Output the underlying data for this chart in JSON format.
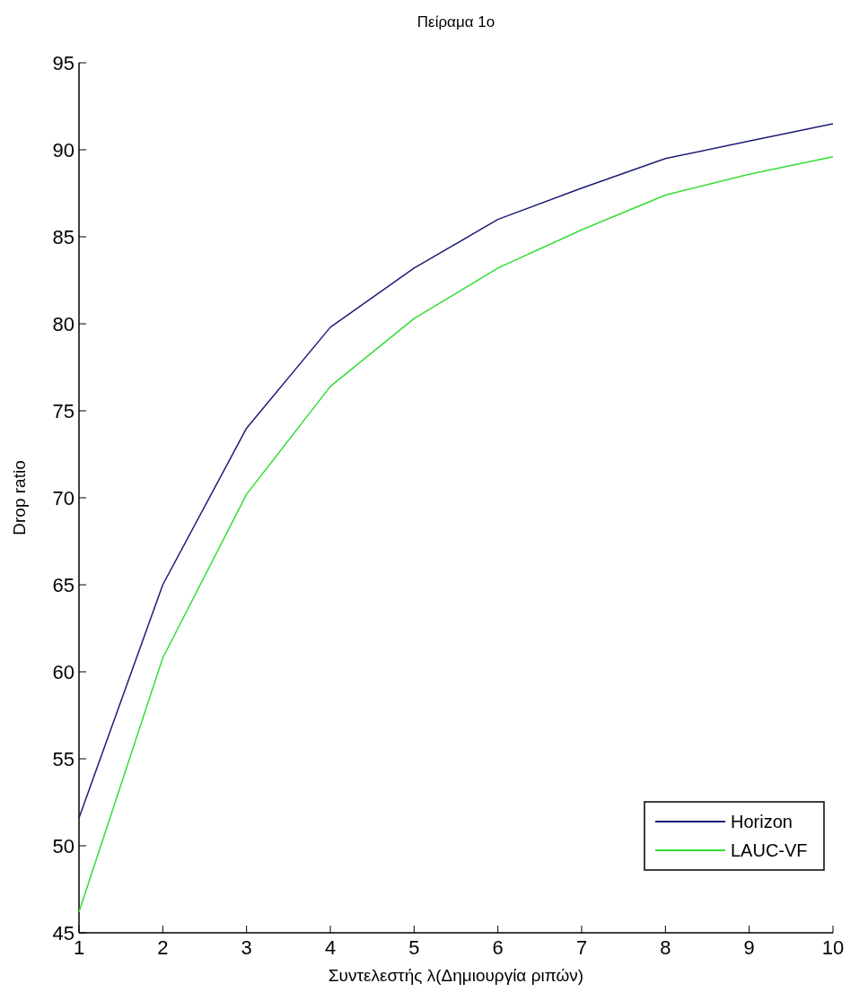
{
  "chart_data": {
    "type": "line",
    "title": "Πείραμα 1ο",
    "xlabel": "Συντελεστής λ(Δημιουργία ριπών)",
    "ylabel": "Drop ratio",
    "x": [
      1,
      2,
      3,
      4,
      5,
      6,
      7,
      8,
      9,
      10
    ],
    "series": [
      {
        "name": "Horizon",
        "color": "#1c1c78",
        "values": [
          51.6,
          65,
          74,
          79.8,
          83.2,
          86,
          87.8,
          89.5,
          90.5,
          91.5
        ]
      },
      {
        "name": "LAUC-VF",
        "color": "#33dd33",
        "values": [
          46.2,
          60.8,
          70.2,
          76.4,
          80.3,
          83.2,
          85.4,
          87.4,
          88.6,
          89.6
        ]
      }
    ],
    "xlim": [
      1,
      10
    ],
    "xticks": [
      1,
      2,
      3,
      4,
      5,
      6,
      7,
      8,
      9,
      10
    ],
    "ylim": [
      45,
      95
    ],
    "yticks": [
      45,
      50,
      55,
      60,
      65,
      70,
      75,
      80,
      85,
      90,
      95
    ],
    "legend": "bottom right",
    "grid": false,
    "marker": "none",
    "line_style": "solid"
  }
}
